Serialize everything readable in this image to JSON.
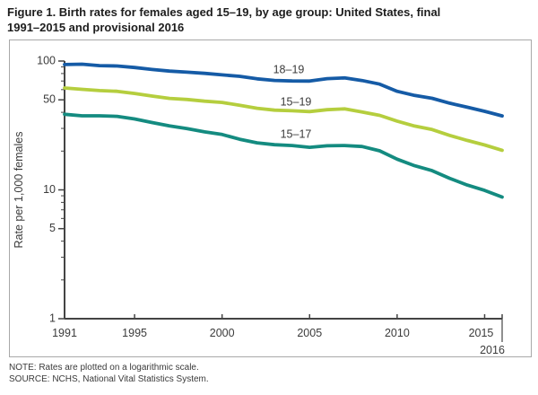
{
  "title": {
    "line1": "Figure 1. Birth rates for females aged 15–19, by age group: United States, final",
    "line2": "1991–2015 and provisional 2016"
  },
  "notes": {
    "note": "NOTE: Rates are plotted on a logarithmic scale.",
    "source": "SOURCE: NCHS, National Vital Statistics System."
  },
  "colors": {
    "line_18_19": "#155ba6",
    "line_15_19": "#b5ce3e",
    "line_15_17": "#148b80",
    "axis": "#444444",
    "frame_border": "#a8a8a8"
  },
  "chart_data": {
    "type": "line",
    "title": "Figure 1. Birth rates for females aged 15–19, by age group: United States, final 1991–2015 and provisional 2016",
    "xlabel": "",
    "ylabel": "Rate per 1,000 females",
    "y_scale": "log",
    "ylim": [
      1,
      100
    ],
    "xlim": [
      1991,
      2016
    ],
    "grid": false,
    "legend_position": "inline-labels-above-lines",
    "x": [
      1991,
      1992,
      1993,
      1994,
      1995,
      1996,
      1997,
      1998,
      1999,
      2000,
      2001,
      2002,
      2003,
      2004,
      2005,
      2006,
      2007,
      2008,
      2009,
      2010,
      2011,
      2012,
      2013,
      2014,
      2015,
      2016
    ],
    "series": [
      {
        "name": "18–19",
        "color": "#155ba6",
        "values": [
          94.0,
          94.5,
          92.1,
          91.5,
          89.1,
          86.0,
          83.6,
          82.0,
          80.3,
          78.1,
          76.1,
          72.8,
          70.7,
          70.0,
          69.9,
          73.0,
          73.9,
          70.6,
          66.2,
          58.2,
          54.1,
          51.4,
          47.1,
          43.8,
          40.7,
          37.5
        ]
      },
      {
        "name": "15–19",
        "color": "#b5ce3e",
        "values": [
          61.8,
          60.3,
          59.0,
          58.2,
          56.0,
          53.5,
          51.3,
          50.3,
          48.8,
          47.7,
          45.3,
          43.0,
          41.6,
          41.1,
          40.5,
          41.9,
          42.5,
          40.2,
          37.9,
          34.2,
          31.3,
          29.4,
          26.5,
          24.2,
          22.3,
          20.3
        ]
      },
      {
        "name": "15–17",
        "color": "#148b80",
        "values": [
          38.6,
          37.6,
          37.6,
          37.2,
          35.5,
          33.3,
          31.4,
          29.9,
          28.2,
          26.9,
          24.7,
          23.2,
          22.4,
          22.1,
          21.4,
          22.0,
          22.1,
          21.7,
          20.1,
          17.3,
          15.4,
          14.1,
          12.3,
          10.9,
          9.9,
          8.8
        ]
      }
    ],
    "y_axis": {
      "major_ticks": [
        100,
        50,
        10,
        5,
        1
      ],
      "minor_ticks": [
        90,
        80,
        70,
        60,
        40,
        30,
        20,
        9,
        8,
        7,
        6,
        4,
        3,
        2
      ]
    },
    "x_axis": {
      "tick_labels": [
        "1991",
        "1995",
        "2000",
        "2005",
        "2010",
        "2015"
      ],
      "tick_label_years": [
        1991,
        1995,
        2000,
        2005,
        2010,
        2015
      ],
      "tick_mark_years": [
        1995,
        2000,
        2005,
        2010,
        2015,
        2016
      ],
      "provisional_label": "2016",
      "provisional_year": 2016
    }
  }
}
